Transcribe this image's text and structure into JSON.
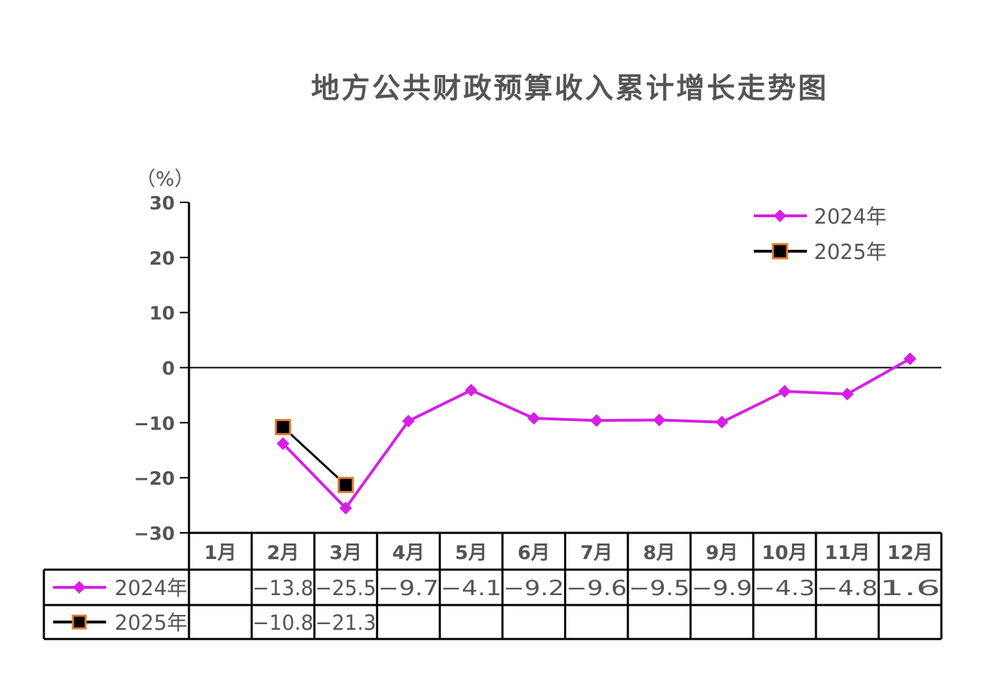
{
  "chart_data": {
    "type": "line",
    "title": "地方公共财政预算收入累计增长走势图",
    "ylabel": "（%）",
    "ylim": [
      -30,
      30
    ],
    "yticks": [
      30,
      20,
      10,
      0,
      -10,
      -20,
      -30
    ],
    "ytick_labels": [
      "30",
      "20",
      "10",
      "0",
      "−10",
      "−20",
      "−30"
    ],
    "grid": false,
    "legend_placement": "top-right",
    "categories": [
      "1月",
      "2月",
      "3月",
      "4月",
      "5月",
      "6月",
      "7月",
      "8月",
      "9月",
      "10月",
      "11月",
      "12月"
    ],
    "series": [
      {
        "name": "2024年",
        "color": "#d61fe6",
        "marker": "diamond",
        "values": [
          null,
          -13.8,
          -25.5,
          -9.7,
          -4.1,
          -9.2,
          -9.6,
          -9.5,
          -9.9,
          -4.3,
          -4.8,
          1.6
        ],
        "labels": [
          "",
          "−13.8",
          "−25.5",
          "−9.7",
          "−4.1",
          "−9.2",
          "−9.6",
          "−9.5",
          "−9.9",
          "−4.3",
          "−4.8",
          "1.6"
        ]
      },
      {
        "name": "2025年",
        "color": "#000000",
        "marker": "square",
        "marker_edge": "#e07b30",
        "values": [
          null,
          -10.8,
          -21.3,
          null,
          null,
          null,
          null,
          null,
          null,
          null,
          null,
          null
        ],
        "labels": [
          "",
          "−10.8",
          "−21.3",
          "",
          "",
          "",
          "",
          "",
          "",
          "",
          "",
          ""
        ]
      }
    ]
  }
}
